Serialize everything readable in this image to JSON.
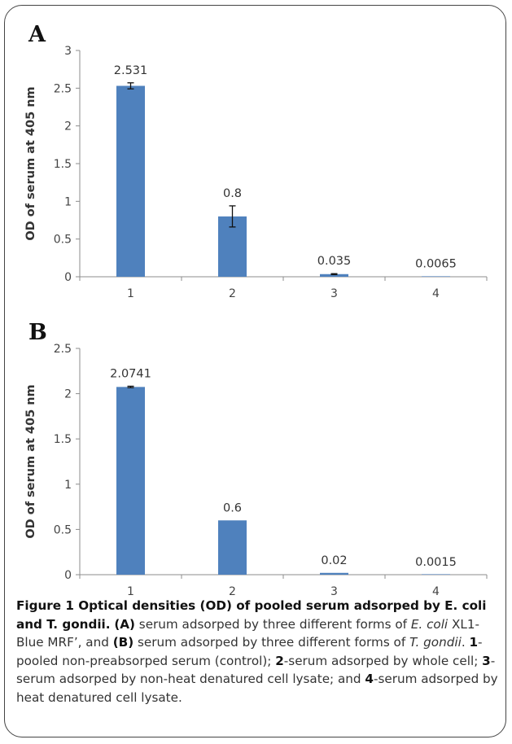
{
  "panels": [
    "A",
    "B"
  ],
  "chart_data": [
    {
      "type": "bar",
      "panel": "A",
      "categories": [
        "1",
        "2",
        "3",
        "4"
      ],
      "values": [
        2.531,
        0.8,
        0.035,
        0.0065
      ],
      "value_labels": [
        "2.531",
        "0.8",
        "0.035",
        "0.0065"
      ],
      "error_bars": [
        0.04,
        0.14,
        0.006,
        0
      ],
      "ylabel": "OD of serum  at 405 nm",
      "ylim": [
        0,
        3
      ],
      "yticks": [
        0,
        0.5,
        1,
        1.5,
        2,
        2.5,
        3
      ],
      "ytick_labels": [
        "0",
        "0.5",
        "1",
        "1.5",
        "2",
        "2.5",
        "3"
      ],
      "bar_color": "#4f81bd",
      "grid": false
    },
    {
      "type": "bar",
      "panel": "B",
      "categories": [
        "1",
        "2",
        "3",
        "4"
      ],
      "values": [
        2.0741,
        0.6,
        0.02,
        0.0015
      ],
      "value_labels": [
        "2.0741",
        "0.6",
        "0.02",
        "0.0015"
      ],
      "error_bars": [
        0.008,
        0,
        0,
        0
      ],
      "ylabel": "OD of serum at 405 nm",
      "ylim": [
        0,
        2.5
      ],
      "yticks": [
        0,
        0.5,
        1,
        1.5,
        2,
        2.5
      ],
      "ytick_labels": [
        "0",
        "0.5",
        "1",
        "1.5",
        "2",
        "2.5"
      ],
      "bar_color": "#4f81bd",
      "grid": false
    }
  ],
  "caption": {
    "title": "Figure 1 Optical densities (OD) of pooled serum adsorped by E. coli and T. gondii.",
    "label_a": "(A)",
    "text_a1": " serum adsorped by three different forms of ",
    "organism_a": "E. coli",
    "text_a2": " XL1-Blue MRF’, and ",
    "label_b": "(B)",
    "text_b1": " serum adsorped by three different forms of ",
    "organism_b": "T. gondii",
    "text_b2": ". ",
    "items": [
      {
        "num": "1",
        "text": "-pooled non-preabsorped serum (control); "
      },
      {
        "num": "2",
        "text": "-serum adsorped by whole cell; "
      },
      {
        "num": "3",
        "text": "-serum adsorped by non-heat denatured cell lysate; and "
      },
      {
        "num": "4",
        "text": "-serum adsorped by heat denatured cell lysate."
      }
    ]
  }
}
